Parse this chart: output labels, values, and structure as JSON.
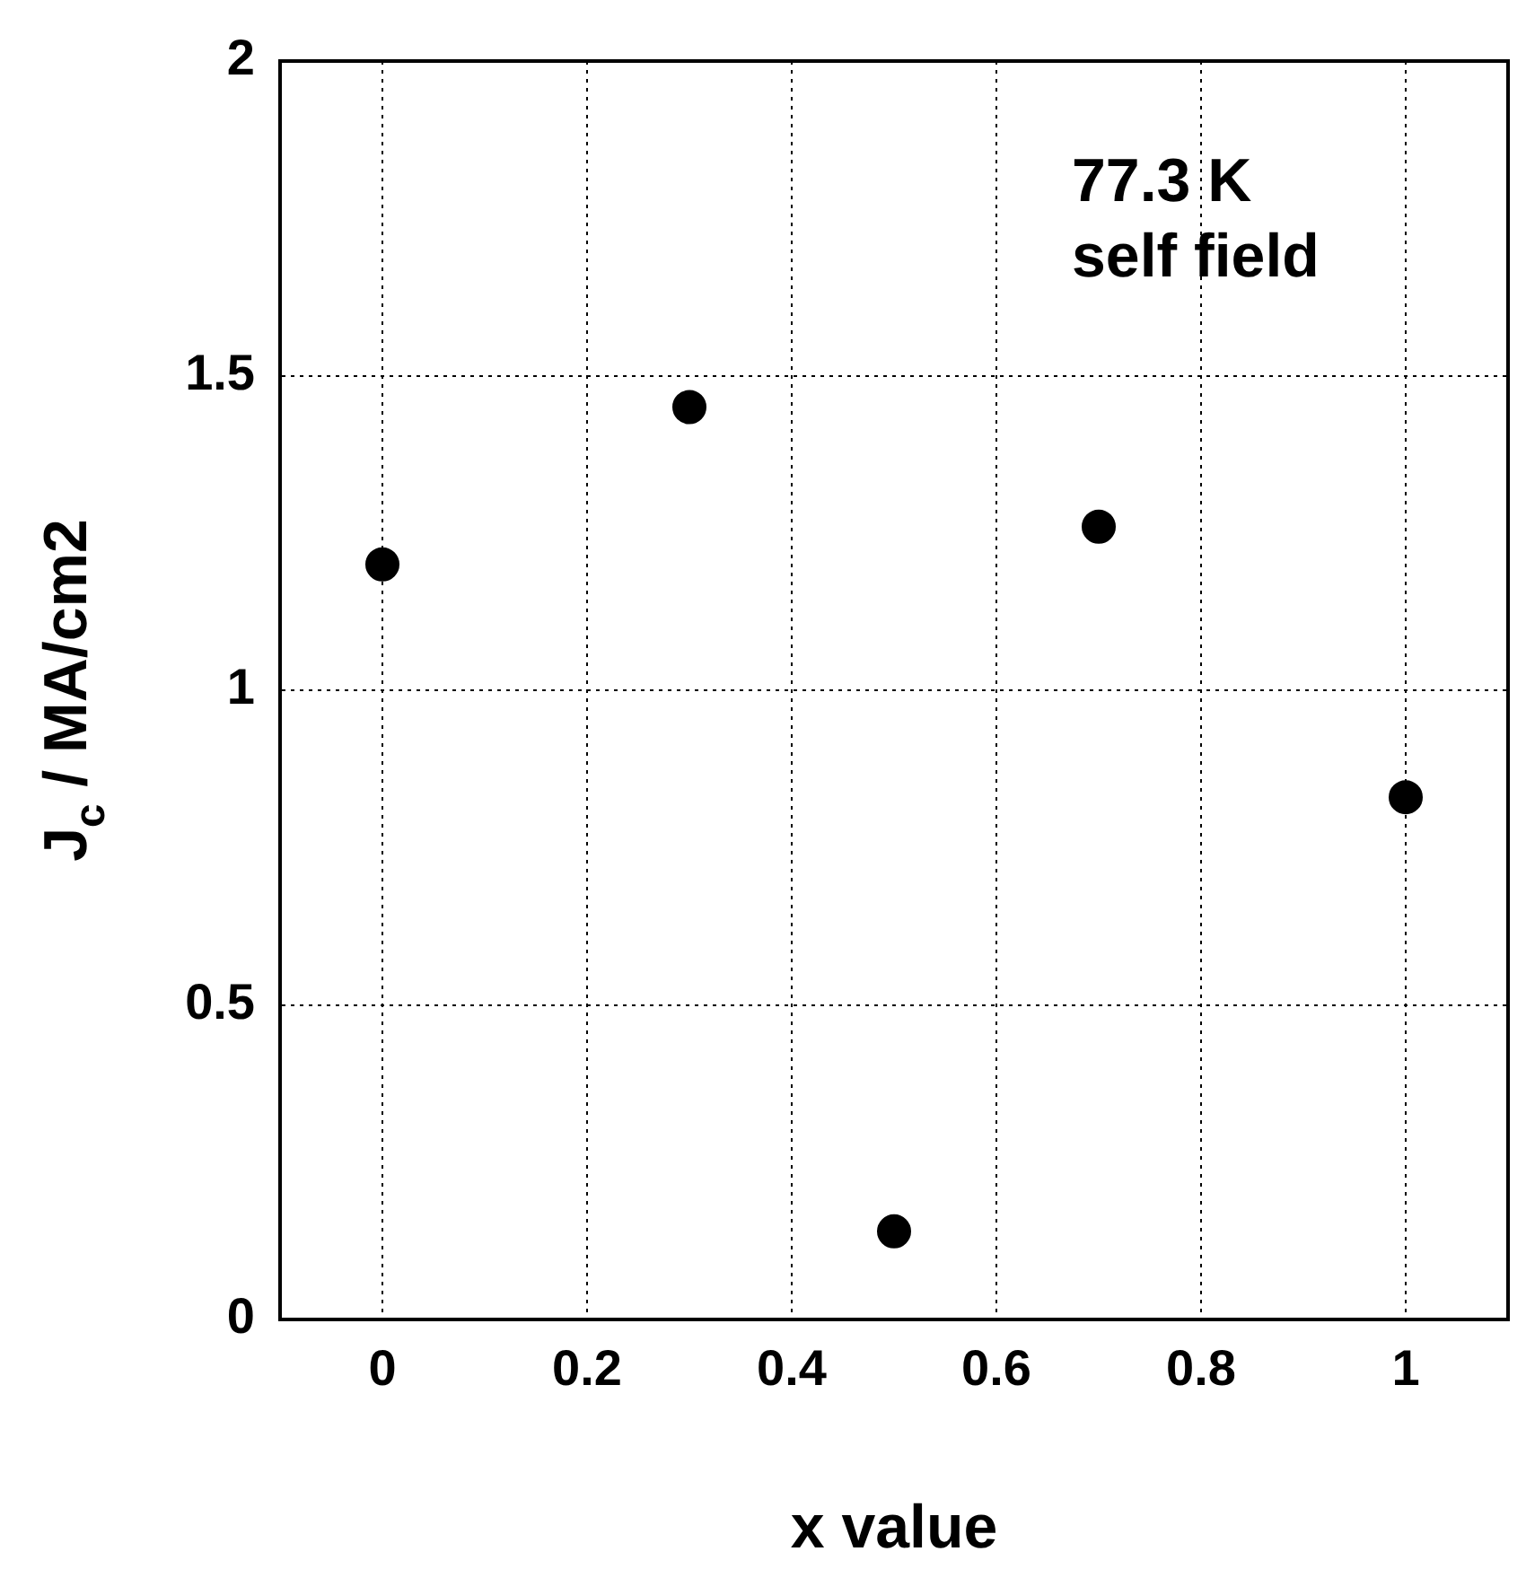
{
  "chart_data": {
    "type": "scatter",
    "xlabel": "x value",
    "ylabel": "J$_{c}$ / MA/cm2",
    "annotations": [
      "77.3 K\nself field"
    ],
    "x": [
      0,
      0.3,
      0.5,
      0.7,
      1
    ],
    "series": [
      {
        "color": "#000000",
        "values": [
          1.2,
          1.45,
          0.14,
          1.26,
          0.83
        ]
      }
    ],
    "xlim": [
      -0.1,
      1.1
    ],
    "xticks": [
      0,
      0.2,
      0.4,
      0.6,
      0.8,
      1
    ],
    "ylim": [
      0,
      2
    ],
    "yticks": [
      0,
      0.5,
      1,
      1.5,
      2
    ],
    "grid": true,
    "legend": false,
    "marker": "circle"
  }
}
